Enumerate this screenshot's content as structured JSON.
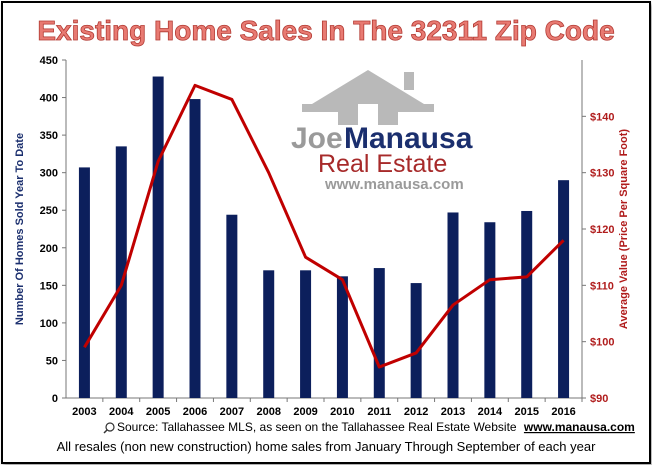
{
  "chart_data": {
    "type": "bar",
    "title": "Existing Home Sales In The 32311 Zip Code",
    "categories": [
      "2003",
      "2004",
      "2005",
      "2006",
      "2007",
      "2008",
      "2009",
      "2010",
      "2011",
      "2012",
      "2013",
      "2014",
      "2015",
      "2016"
    ],
    "series": [
      {
        "axis": "left",
        "type": "bar",
        "color": "#0c1f5c",
        "values": [
          307,
          335,
          428,
          398,
          244,
          170,
          170,
          162,
          173,
          153,
          247,
          234,
          249,
          290
        ]
      },
      {
        "axis": "right",
        "type": "line",
        "color": "#c00000",
        "values": [
          99,
          110,
          132,
          145.5,
          143,
          130,
          115,
          111,
          95.5,
          98,
          106.5,
          111,
          111.5,
          118
        ]
      }
    ],
    "ylabel": "Number Of Homes Sold Year To Date",
    "ylabel_right": "Average Value (Price Per Square Foot)",
    "ylim": [
      0,
      450
    ],
    "ylim_right": [
      90,
      150
    ],
    "yticks": [
      "0",
      "50",
      "100",
      "150",
      "200",
      "250",
      "300",
      "350",
      "400",
      "450"
    ],
    "yticks_right": [
      "$90",
      "$100",
      "$110",
      "$120",
      "$130",
      "$140"
    ],
    "grid": false,
    "colors": {
      "title": "#d9534f",
      "bars": "#0c1f5c",
      "line": "#c00000",
      "right_axis_text": "#b01c1c"
    }
  },
  "logo": {
    "text_joe": "Joe",
    "text_manausa": "Manausa",
    "text_real_estate": "Real Estate",
    "url": "www.manausa.com"
  },
  "footer": {
    "source_prefix": "Source: Tallahassee MLS, as seen on the Tallahassee Real Estate Website",
    "source_link": "www.manausa.com",
    "note": "All resales (non new construction) home sales from January Through September of each year"
  }
}
